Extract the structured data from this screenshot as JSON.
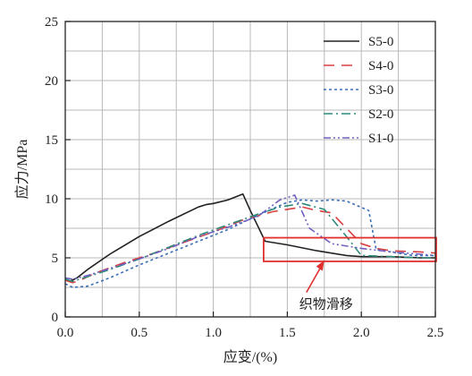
{
  "chart_data": {
    "type": "line",
    "xlabel": "应变/(%)",
    "ylabel": "应力/MPa",
    "xlim": [
      0,
      2.5
    ],
    "ylim": [
      0,
      25
    ],
    "xticks": [
      "0.0",
      "0.5",
      "1.0",
      "1.5",
      "2.0",
      "2.5"
    ],
    "yticks": [
      "0",
      "5",
      "10",
      "15",
      "20",
      "25"
    ],
    "grid": true,
    "legend_position": "top-right",
    "annotation": {
      "text": "织物滑移",
      "box_x": [
        1.34,
        2.5
      ],
      "box_y": [
        4.7,
        6.7
      ],
      "arrow_target": [
        1.75,
        4.8
      ]
    },
    "series": [
      {
        "name": "S5-0",
        "color": "#222222",
        "style": "solid",
        "x": [
          0,
          0.03,
          0.08,
          0.15,
          0.3,
          0.5,
          0.7,
          0.9,
          0.95,
          1.0,
          1.1,
          1.2,
          1.25,
          1.35,
          1.5,
          1.7,
          1.9,
          2.0,
          2.2,
          2.4,
          2.5
        ],
        "y": [
          3.2,
          3.0,
          3.3,
          4.0,
          5.3,
          6.8,
          8.1,
          9.3,
          9.5,
          9.6,
          9.9,
          10.4,
          9.0,
          6.4,
          6.1,
          5.6,
          5.2,
          5.1,
          5.1,
          5.0,
          5.0
        ]
      },
      {
        "name": "S4-0",
        "color": "#d94040",
        "style": "dash",
        "x": [
          0,
          0.05,
          0.1,
          0.2,
          0.4,
          0.6,
          0.8,
          1.0,
          1.2,
          1.4,
          1.6,
          1.7,
          1.8,
          1.9,
          2.0,
          2.1,
          2.2,
          2.4,
          2.5
        ],
        "y": [
          3.1,
          2.9,
          3.1,
          3.7,
          4.6,
          5.4,
          6.3,
          7.2,
          8.2,
          8.9,
          9.3,
          9.0,
          8.8,
          7.5,
          6.2,
          5.8,
          5.6,
          5.5,
          5.4
        ]
      },
      {
        "name": "S3-0",
        "color": "#3a6fb5",
        "style": "dot",
        "x": [
          0,
          0.05,
          0.15,
          0.3,
          0.5,
          0.7,
          0.9,
          1.1,
          1.3,
          1.5,
          1.6,
          1.7,
          1.8,
          1.9,
          2.05,
          2.1,
          2.2,
          2.35,
          2.5
        ],
        "y": [
          2.8,
          2.5,
          2.6,
          3.3,
          4.4,
          5.4,
          6.4,
          7.4,
          8.6,
          9.7,
          9.9,
          9.8,
          9.9,
          9.8,
          9.0,
          5.7,
          5.5,
          5.2,
          5.2
        ]
      },
      {
        "name": "S2-0",
        "color": "#2d8a7a",
        "style": "dashdot",
        "x": [
          0,
          0.05,
          0.15,
          0.3,
          0.5,
          0.7,
          0.9,
          1.1,
          1.3,
          1.45,
          1.6,
          1.75,
          1.9,
          2.0,
          2.2,
          2.4,
          2.5
        ],
        "y": [
          3.2,
          3.0,
          3.4,
          4.0,
          4.9,
          5.9,
          6.9,
          7.8,
          8.7,
          9.3,
          9.6,
          9.1,
          6.8,
          5.2,
          5.1,
          5.0,
          5.0
        ]
      },
      {
        "name": "S1-0",
        "color": "#7060c0",
        "style": "dashdotdot",
        "x": [
          0,
          0.05,
          0.15,
          0.3,
          0.5,
          0.7,
          0.9,
          1.1,
          1.3,
          1.45,
          1.55,
          1.65,
          1.8,
          2.0,
          2.2,
          2.4,
          2.5
        ],
        "y": [
          3.3,
          3.2,
          3.5,
          4.1,
          4.9,
          5.8,
          6.8,
          7.6,
          8.5,
          9.9,
          10.3,
          7.5,
          6.2,
          5.8,
          5.5,
          5.3,
          5.2
        ]
      }
    ]
  }
}
